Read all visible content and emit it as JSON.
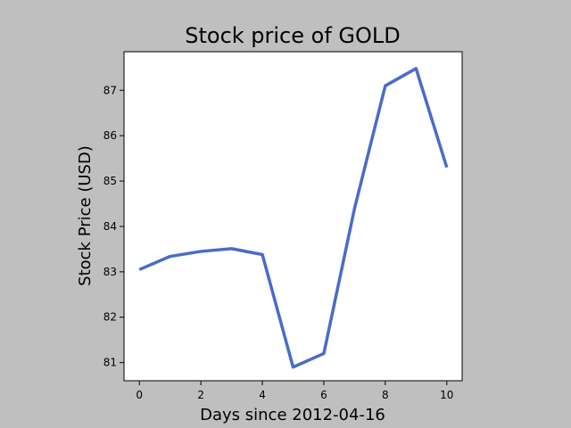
{
  "chart_data": {
    "type": "line",
    "title": "Stock price of GOLD",
    "xlabel": "Days since 2012-04-16",
    "ylabel": "Stock Price (USD)",
    "xlim": [
      -0.5,
      10.5
    ],
    "ylim": [
      80.6,
      87.85
    ],
    "xticks": [
      0,
      2,
      4,
      6,
      8,
      10
    ],
    "yticks": [
      81,
      82,
      83,
      84,
      85,
      86,
      87
    ],
    "grid": false,
    "series": [
      {
        "color": "#4a6cc8",
        "x": [
          0,
          1,
          2,
          3,
          4,
          5,
          6,
          7,
          8,
          9,
          10
        ],
        "y": [
          83.05,
          83.34,
          83.45,
          83.51,
          83.38,
          80.9,
          81.2,
          84.4,
          87.1,
          87.48,
          85.3
        ]
      }
    ]
  }
}
